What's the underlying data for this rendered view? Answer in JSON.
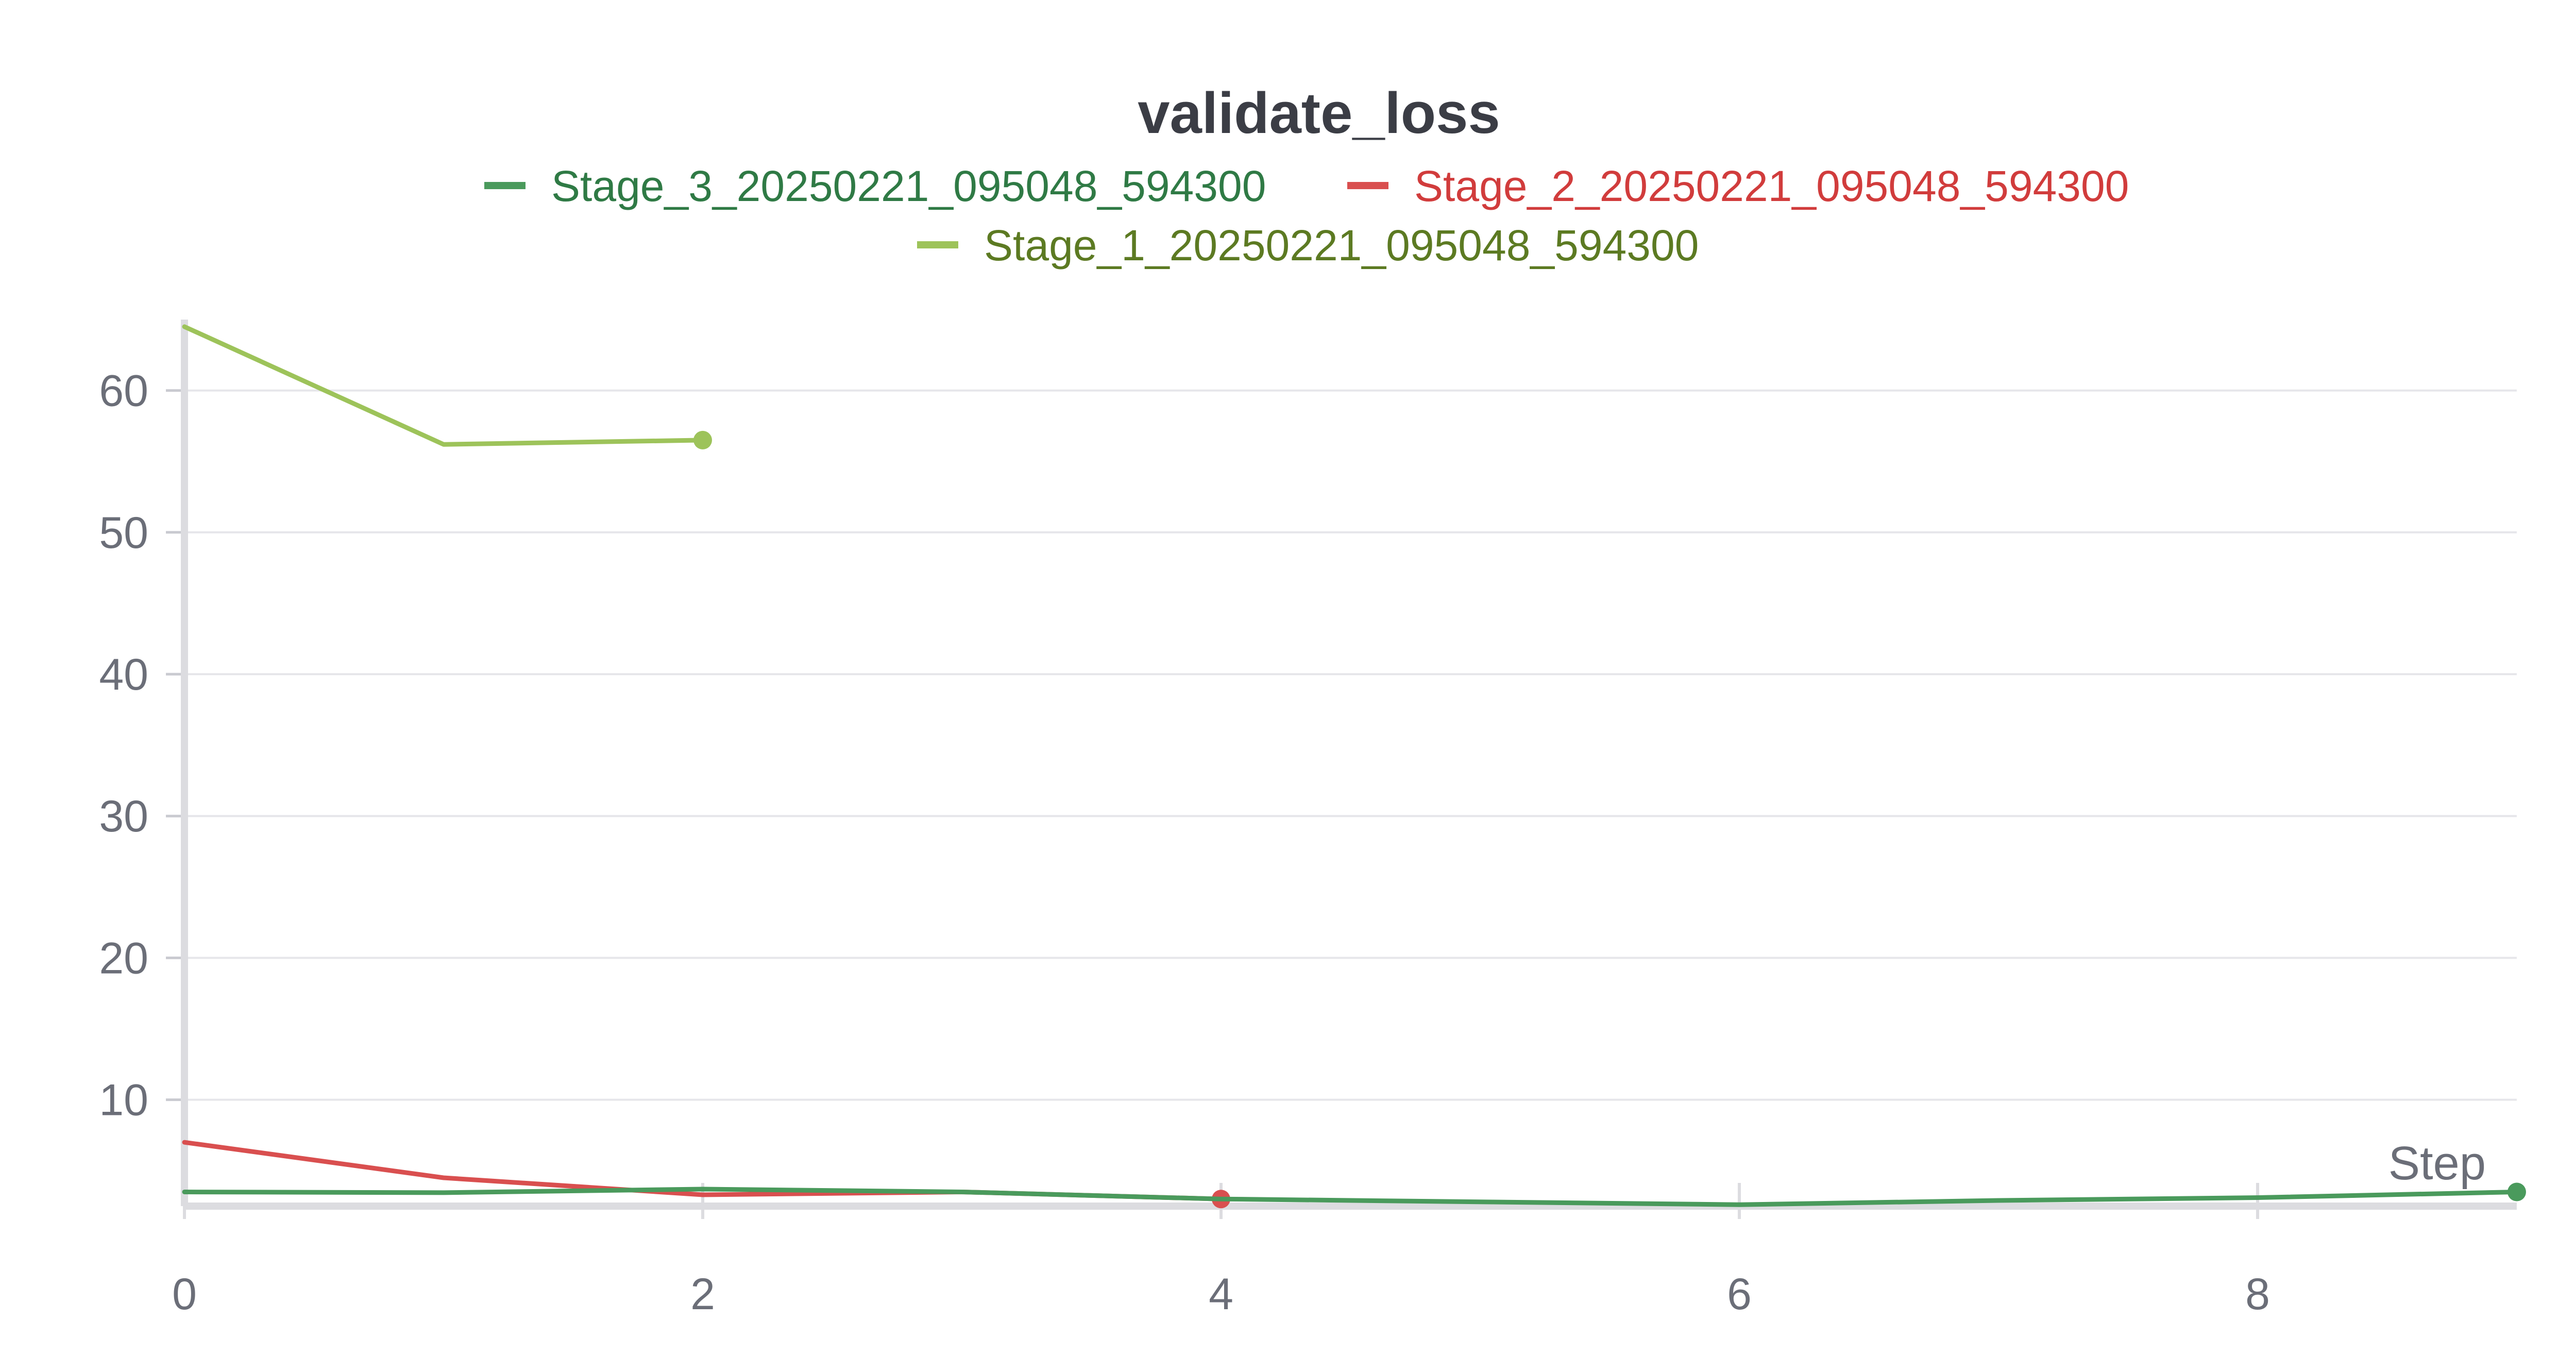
{
  "chart_data": {
    "type": "line",
    "title": "validate_loss",
    "xlabel": "Step",
    "ylabel": "",
    "xlim": [
      0,
      9
    ],
    "ylim": [
      2.5,
      65
    ],
    "x_ticks": [
      0,
      2,
      4,
      6,
      8
    ],
    "y_ticks": [
      10,
      20,
      30,
      40,
      50,
      60
    ],
    "grid": true,
    "legend_position": "top-center",
    "series": [
      {
        "name": "Stage_3_20250221_095048_594300",
        "color": "#4a9a5c",
        "legend_text_color": "#2f7a45",
        "x": [
          0,
          1,
          2,
          3,
          4,
          5,
          6,
          7,
          8,
          9
        ],
        "y": [
          3.5,
          3.45,
          3.7,
          3.5,
          3.0,
          2.8,
          2.6,
          2.9,
          3.1,
          3.5
        ]
      },
      {
        "name": "Stage_2_20250221_095048_594300",
        "color": "#d94f4f",
        "legend_text_color": "#d13c3c",
        "x": [
          0,
          1,
          2,
          3,
          4
        ],
        "y": [
          7.0,
          4.5,
          3.3,
          3.5,
          3.0
        ]
      },
      {
        "name": "Stage_1_20250221_095048_594300",
        "color": "#9dc35a",
        "legend_text_color": "#5c7a22",
        "x": [
          0,
          1,
          2
        ],
        "y": [
          64.5,
          56.2,
          56.5
        ]
      }
    ]
  }
}
